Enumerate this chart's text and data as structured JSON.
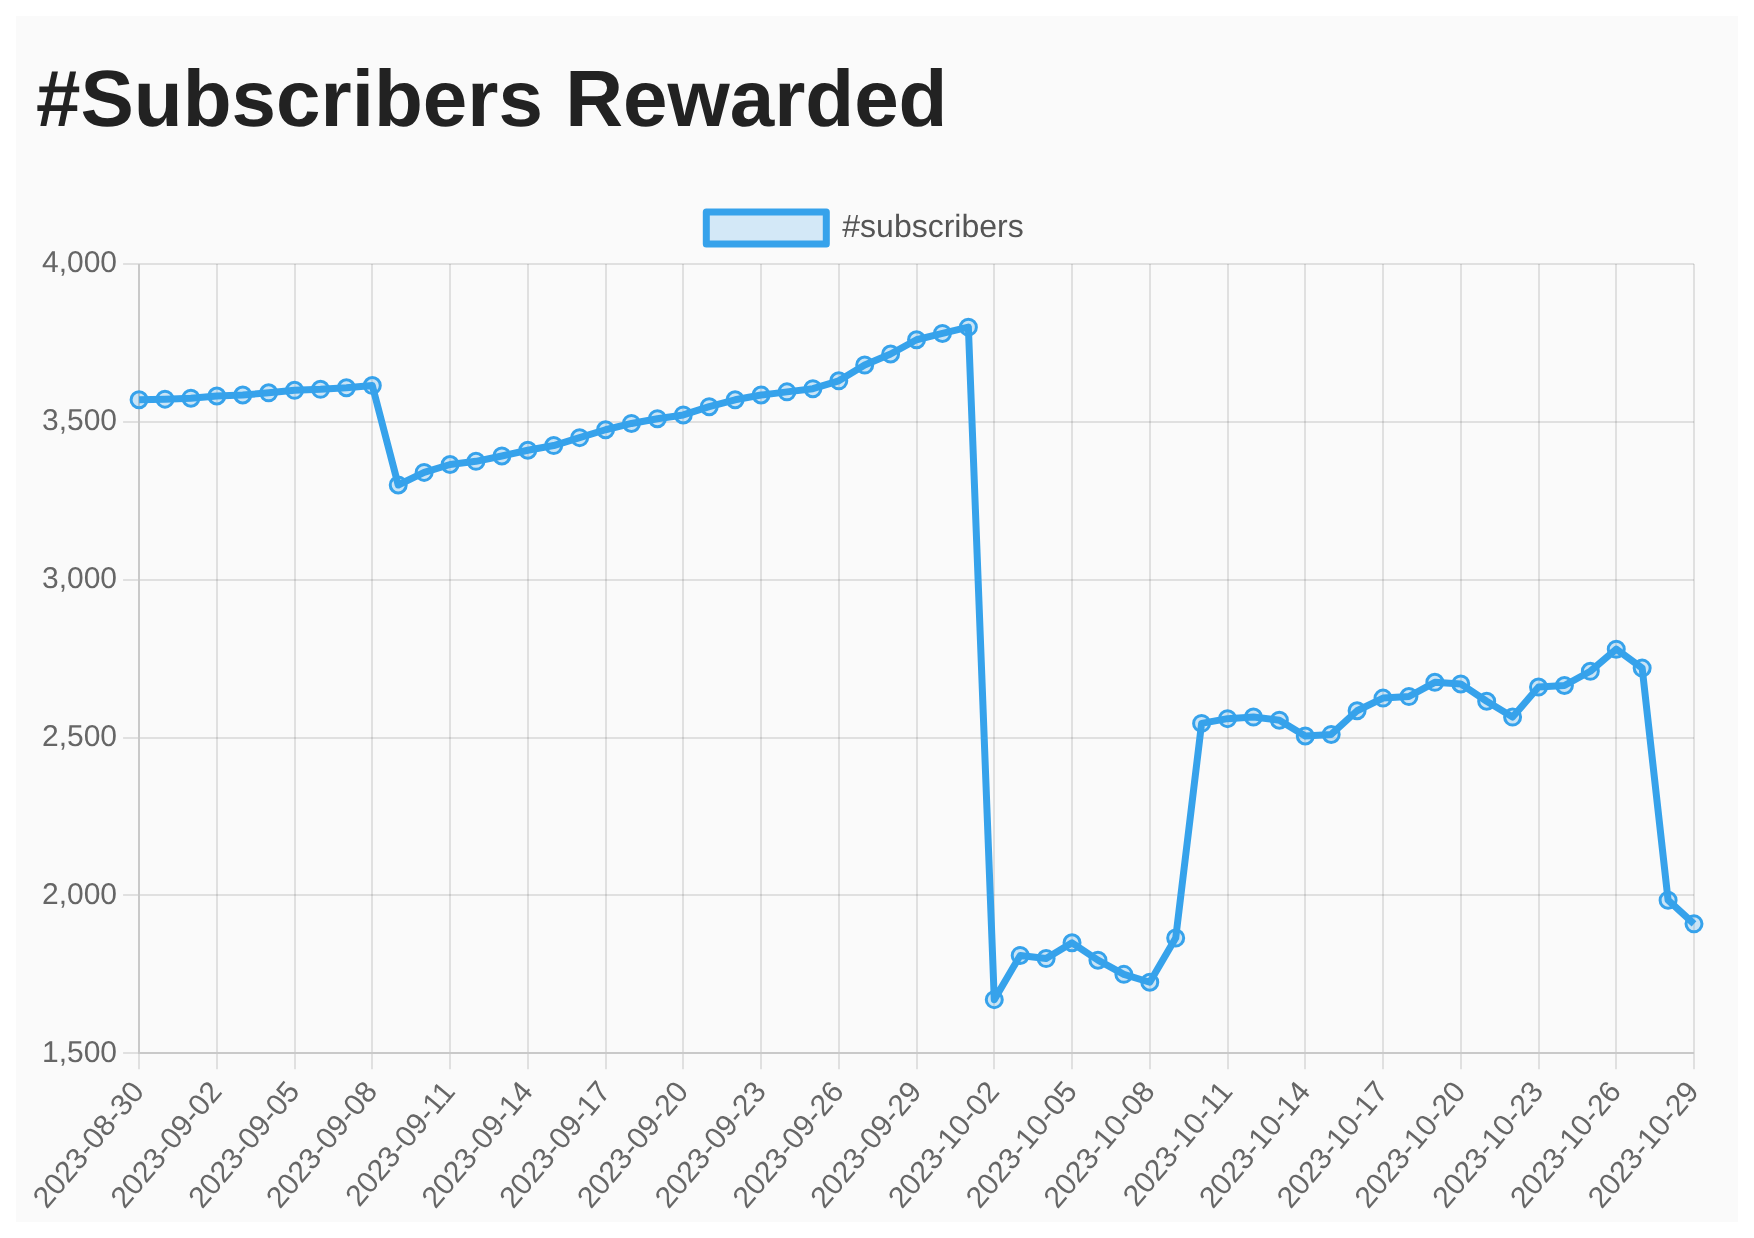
{
  "chart_data": {
    "type": "line",
    "title": "#Subscribers Rewarded",
    "categories": [
      "2023-08-30",
      null,
      null,
      "2023-09-02",
      null,
      null,
      "2023-09-05",
      null,
      null,
      "2023-09-08",
      null,
      null,
      "2023-09-11",
      null,
      null,
      "2023-09-14",
      null,
      null,
      "2023-09-17",
      null,
      null,
      "2023-09-20",
      null,
      null,
      "2023-09-23",
      null,
      null,
      "2023-09-26",
      null,
      null,
      "2023-09-29",
      null,
      null,
      "2023-10-02",
      null,
      null,
      "2023-10-05",
      null,
      null,
      "2023-10-08",
      null,
      null,
      "2023-10-11",
      null,
      null,
      "2023-10-14",
      null,
      null,
      "2023-10-17",
      null,
      null,
      "2023-10-20",
      null,
      null,
      "2023-10-23",
      null,
      null,
      "2023-10-26",
      null,
      null,
      "2023-10-29"
    ],
    "series": [
      {
        "name": "#subscribers",
        "color": "#36a2eb",
        "values": [
          3570,
          3572,
          3575,
          3582,
          3585,
          3592,
          3600,
          3603,
          3608,
          3615,
          3300,
          3340,
          3365,
          3375,
          3392,
          3410,
          3425,
          3450,
          3475,
          3495,
          3510,
          3522,
          3548,
          3570,
          3585,
          3595,
          3605,
          3630,
          3680,
          3715,
          3760,
          3780,
          3800,
          1670,
          1810,
          1800,
          1850,
          1795,
          1750,
          1725,
          1865,
          2545,
          2560,
          2565,
          2555,
          2505,
          2510,
          2585,
          2625,
          2630,
          2675,
          2670,
          2615,
          2565,
          2660,
          2665,
          2710,
          2780,
          2720,
          1985,
          1910
        ]
      }
    ],
    "ylim": [
      1500,
      4000
    ],
    "yticks": [
      {
        "value": 1500,
        "label": "1,500"
      },
      {
        "value": 2000,
        "label": "2,000"
      },
      {
        "value": 2500,
        "label": "2,500"
      },
      {
        "value": 3000,
        "label": "3,000"
      },
      {
        "value": 3500,
        "label": "3,500"
      },
      {
        "value": 4000,
        "label": "4,000"
      }
    ],
    "grid": true,
    "legend": "top",
    "marker": "circle",
    "line_style": "solid"
  }
}
